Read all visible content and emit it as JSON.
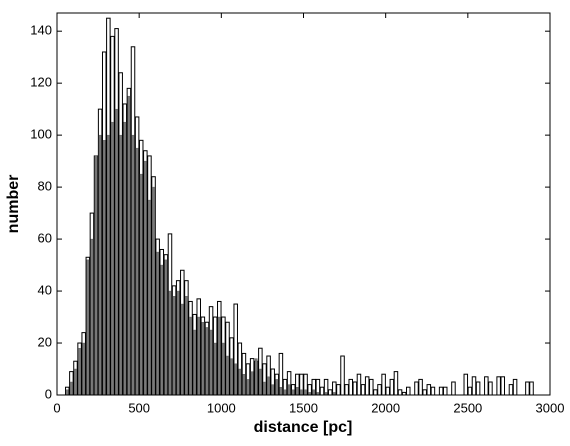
{
  "chart_data": {
    "type": "histogram",
    "x_label": "distance [pc]",
    "y_label": "number",
    "bins": [
      0,
      25,
      50,
      75,
      100,
      125,
      150,
      175,
      200,
      225,
      250,
      275,
      300,
      325,
      350,
      375,
      400,
      425,
      450,
      475,
      500,
      525,
      550,
      575,
      600,
      625,
      650,
      675,
      700,
      725,
      750,
      775,
      800,
      825,
      850,
      875,
      900,
      925,
      950,
      975,
      1000,
      1025,
      1050,
      1075,
      1100,
      1125,
      1150,
      1175,
      1200,
      1225,
      1250,
      1275,
      1300,
      1325,
      1350,
      1375,
      1400,
      1425,
      1450,
      1475,
      1500,
      1525,
      1550,
      1575,
      1600,
      1625,
      1650,
      1675,
      1700,
      1725,
      1750,
      1775,
      1800,
      1825,
      1850,
      1875,
      1900,
      1925,
      1950,
      1975,
      2000,
      2025,
      2050,
      2075,
      2100,
      2125,
      2150,
      2175,
      2200,
      2225,
      2250,
      2275,
      2300,
      2325,
      2350,
      2375,
      2400,
      2425,
      2450,
      2475,
      2500,
      2525,
      2550,
      2575,
      2600,
      2625,
      2650,
      2675,
      2700,
      2725,
      2750,
      2775,
      2800,
      2825,
      2850,
      2875,
      2900,
      2925,
      2950,
      2975,
      3000
    ],
    "series": [
      {
        "color": "#ffffff",
        "values": [
          0,
          0,
          3,
          9,
          13,
          20,
          24,
          53,
          70,
          92,
          110,
          132,
          145,
          138,
          141,
          124,
          112,
          118,
          134,
          107,
          98,
          94,
          92,
          84,
          60,
          56,
          54,
          62,
          42,
          44,
          48,
          44,
          36,
          31,
          37,
          30,
          28,
          34,
          30,
          36,
          30,
          28,
          22,
          35,
          20,
          16,
          12,
          14,
          13,
          18,
          12,
          15,
          10,
          8,
          16,
          6,
          9,
          4,
          8,
          8,
          8,
          4,
          6,
          6,
          3,
          6,
          2,
          5,
          4,
          15,
          4,
          6,
          5,
          8,
          4,
          7,
          6,
          2,
          4,
          8,
          3,
          6,
          9,
          2,
          1,
          3,
          0,
          5,
          6,
          2,
          4,
          3,
          0,
          3,
          3,
          0,
          5,
          0,
          0,
          8,
          3,
          7,
          5,
          0,
          7,
          5,
          0,
          7,
          7,
          0,
          4,
          6,
          0,
          0,
          5,
          5,
          0,
          0,
          0,
          0
        ]
      },
      {
        "color": "#7a7a7a",
        "values": [
          0,
          0,
          2,
          5,
          10,
          18,
          20,
          52,
          60,
          92,
          100,
          98,
          100,
          105,
          110,
          100,
          105,
          115,
          100,
          95,
          85,
          90,
          75,
          80,
          55,
          50,
          52,
          40,
          38,
          40,
          35,
          38,
          30,
          25,
          30,
          28,
          26,
          25,
          20,
          30,
          20,
          15,
          14,
          12,
          10,
          8,
          6,
          9,
          14,
          10,
          5,
          7,
          4,
          6,
          3,
          2,
          4,
          2,
          3,
          2,
          2,
          1,
          2,
          1,
          0,
          1,
          0,
          1,
          0,
          0,
          0,
          0,
          0,
          0,
          0,
          0,
          0,
          0,
          0,
          0,
          0,
          0,
          0,
          0,
          0,
          0,
          0,
          0,
          0,
          0,
          0,
          0,
          0,
          0,
          0,
          0,
          0,
          0,
          0,
          0,
          0,
          0,
          0,
          0,
          0,
          0,
          0,
          0,
          0,
          0,
          0,
          0,
          0,
          0,
          0,
          0,
          0,
          0,
          0,
          0
        ]
      }
    ],
    "xlim": [
      0,
      3000
    ],
    "xticks": [
      0,
      500,
      1000,
      1500,
      2000,
      2500,
      3000
    ],
    "ylim": [
      0,
      147
    ],
    "yticks": [
      0,
      20,
      40,
      60,
      80,
      100,
      120,
      140
    ]
  }
}
